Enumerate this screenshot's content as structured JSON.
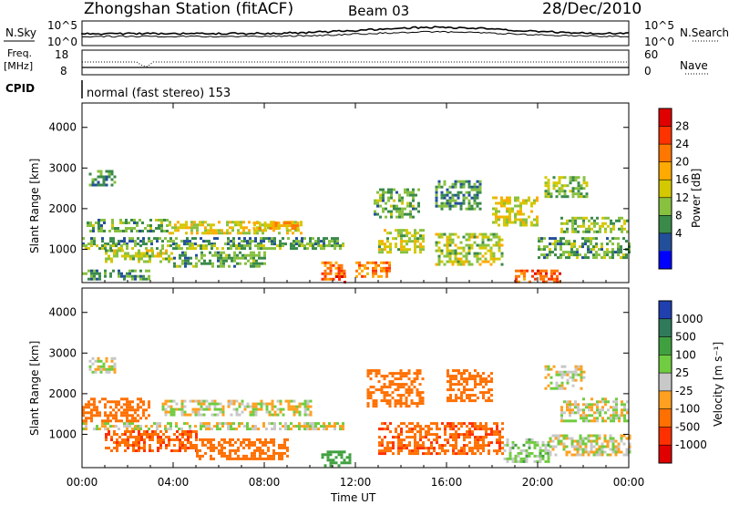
{
  "header": {
    "title": "Zhongshan Station (fitACF)",
    "beam": "Beam 03",
    "date": "28/Dec/2010"
  },
  "top_panels": {
    "nsky": {
      "label": "N.Sky",
      "ticks": [
        "10^5",
        "10^0"
      ],
      "right_label": "N.Search",
      "right_ticks": [
        "10^5",
        "10^0"
      ]
    },
    "freq": {
      "label_line1": "Freq.",
      "label_line2": "[MHz]",
      "ticks": [
        "18",
        "8"
      ],
      "right_label": "Nave",
      "right_ticks": [
        "60",
        "0"
      ]
    },
    "cpid": {
      "label": "CPID",
      "mode": "normal (fast stereo) 153"
    }
  },
  "power_colorbar": {
    "title": "Power [dB]",
    "ticks": [
      "28",
      "24",
      "20",
      "16",
      "12",
      "8",
      "4"
    ],
    "colors": [
      "#e00000",
      "#ff3300",
      "#ff7700",
      "#ffaa00",
      "#d4c800",
      "#88c040",
      "#3a8a4a",
      "#234f9a",
      "#0000ff"
    ]
  },
  "velocity_colorbar": {
    "title": "Velocity [m s⁻¹]",
    "ticks": [
      "1000",
      "500",
      "100",
      "25",
      "-25",
      "-100",
      "-500",
      "-1000"
    ],
    "colors": [
      "#2040b0",
      "#2f7a5a",
      "#40a040",
      "#70cc40",
      "#c8c8c8",
      "#ffa020",
      "#ff7000",
      "#ff3000",
      "#e00000"
    ]
  },
  "chart_data": [
    {
      "type": "heatmap",
      "panel": "power",
      "xlabel": "",
      "ylabel": "Slant Range [km]",
      "x_ticks": [
        "00:00",
        "04:00",
        "08:00",
        "12:00",
        "16:00",
        "20:00",
        "00:00"
      ],
      "xlim_hours": [
        0,
        24
      ],
      "y_ticks": [
        1000,
        2000,
        3000,
        4000
      ],
      "ylim_km": [
        180,
        4600
      ],
      "colorbar_units": "dB",
      "echo_regions": [
        {
          "t": [
            0.3,
            1.5
          ],
          "r": [
            2600,
            2950
          ],
          "v": 8
        },
        {
          "t": [
            0.0,
            11.5
          ],
          "r": [
            1150,
            1300
          ],
          "v": 8
        },
        {
          "t": [
            0.0,
            11.5
          ],
          "r": [
            1020,
            1120
          ],
          "v": 12
        },
        {
          "t": [
            0.2,
            3.8
          ],
          "r": [
            1450,
            1750
          ],
          "v": 10
        },
        {
          "t": [
            3.8,
            9.8
          ],
          "r": [
            1400,
            1700
          ],
          "v": 16
        },
        {
          "t": [
            7.5,
            9.5
          ],
          "r": [
            1500,
            1680
          ],
          "v": 20
        },
        {
          "t": [
            1.0,
            4.0
          ],
          "r": [
            700,
            1000
          ],
          "v": 14
        },
        {
          "t": [
            4.0,
            8.0
          ],
          "r": [
            600,
            950
          ],
          "v": 10
        },
        {
          "t": [
            0.0,
            3.0
          ],
          "r": [
            250,
            500
          ],
          "v": 8
        },
        {
          "t": [
            10.5,
            11.5
          ],
          "r": [
            250,
            700
          ],
          "v": 24
        },
        {
          "t": [
            11.0,
            11.6
          ],
          "r": [
            180,
            360
          ],
          "v": 28
        },
        {
          "t": [
            12.0,
            13.5
          ],
          "r": [
            300,
            700
          ],
          "v": 22
        },
        {
          "t": [
            12.8,
            14.8
          ],
          "r": [
            1800,
            2500
          ],
          "v": 10
        },
        {
          "t": [
            13.0,
            15.0
          ],
          "r": [
            900,
            1500
          ],
          "v": 14
        },
        {
          "t": [
            15.5,
            18.5
          ],
          "r": [
            600,
            1400
          ],
          "v": 14
        },
        {
          "t": [
            15.5,
            17.5
          ],
          "r": [
            2000,
            2700
          ],
          "v": 8
        },
        {
          "t": [
            18.0,
            20.0
          ],
          "r": [
            1600,
            2300
          ],
          "v": 16
        },
        {
          "t": [
            19.0,
            21.0
          ],
          "r": [
            200,
            500
          ],
          "v": 26
        },
        {
          "t": [
            20.3,
            22.2
          ],
          "r": [
            2300,
            2800
          ],
          "v": 12
        },
        {
          "t": [
            21.0,
            24.0
          ],
          "r": [
            1400,
            1800
          ],
          "v": 12
        },
        {
          "t": [
            20.0,
            24.0
          ],
          "r": [
            800,
            1300
          ],
          "v": 10
        }
      ]
    },
    {
      "type": "heatmap",
      "panel": "velocity",
      "xlabel": "Time UT",
      "ylabel": "Slant Range [km]",
      "x_ticks": [
        "00:00",
        "04:00",
        "08:00",
        "12:00",
        "16:00",
        "20:00",
        "00:00"
      ],
      "xlim_hours": [
        0,
        24
      ],
      "y_ticks": [
        1000,
        2000,
        3000,
        4000
      ],
      "ylim_km": [
        180,
        4600
      ],
      "colorbar_units": "m s-1",
      "echo_regions": [
        {
          "t": [
            0.3,
            1.5
          ],
          "r": [
            2550,
            2900
          ],
          "v": 0
        },
        {
          "t": [
            0.0,
            11.5
          ],
          "r": [
            1150,
            1300
          ],
          "v": 0
        },
        {
          "t": [
            3.5,
            10.0
          ],
          "r": [
            1500,
            1850
          ],
          "v": 0
        },
        {
          "t": [
            0.0,
            3.0
          ],
          "r": [
            1300,
            1900
          ],
          "v": -300
        },
        {
          "t": [
            1.0,
            5.0
          ],
          "r": [
            600,
            1100
          ],
          "v": -400
        },
        {
          "t": [
            5.0,
            9.0
          ],
          "r": [
            400,
            900
          ],
          "v": -300
        },
        {
          "t": [
            10.5,
            11.8
          ],
          "r": [
            200,
            600
          ],
          "v": 300
        },
        {
          "t": [
            12.5,
            15.0
          ],
          "r": [
            1700,
            2600
          ],
          "v": -300
        },
        {
          "t": [
            13.0,
            18.5
          ],
          "r": [
            500,
            1300
          ],
          "v": -400
        },
        {
          "t": [
            16.0,
            18.0
          ],
          "r": [
            1800,
            2600
          ],
          "v": -200
        },
        {
          "t": [
            18.5,
            20.5
          ],
          "r": [
            300,
            900
          ],
          "v": 50
        },
        {
          "t": [
            20.3,
            22.0
          ],
          "r": [
            2100,
            2700
          ],
          "v": 0
        },
        {
          "t": [
            21.0,
            24.0
          ],
          "r": [
            1300,
            1900
          ],
          "v": 0
        },
        {
          "t": [
            20.5,
            24.0
          ],
          "r": [
            500,
            1000
          ],
          "v": 0
        }
      ]
    }
  ]
}
